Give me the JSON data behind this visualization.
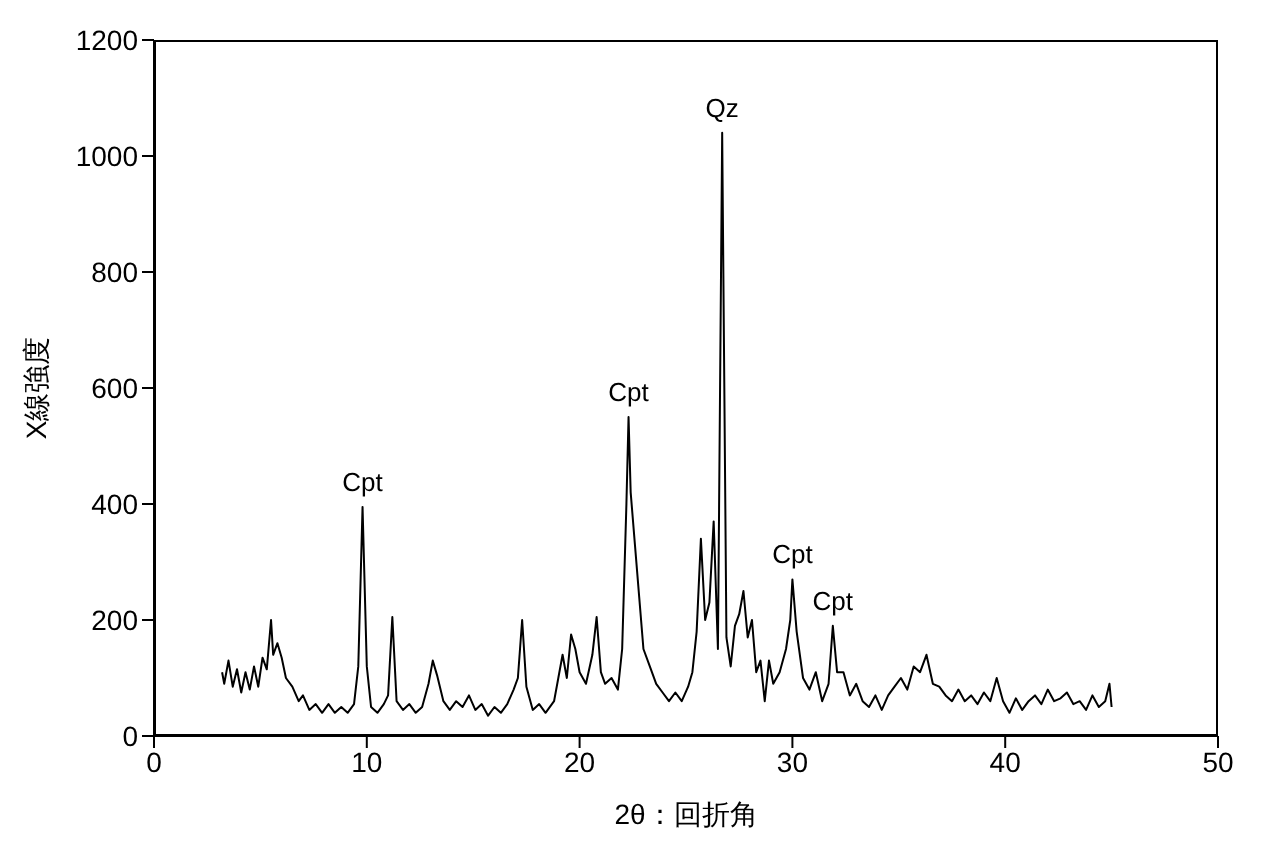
{
  "chart_data": {
    "type": "line",
    "xlabel": "2θ：回折角",
    "ylabel": "X線強度",
    "xlim": [
      0,
      50
    ],
    "xticks": [
      0,
      10,
      20,
      30,
      40,
      50
    ],
    "ylim": [
      0,
      1200
    ],
    "yticks": [
      0,
      200,
      400,
      600,
      800,
      1000,
      1200
    ],
    "grid": false,
    "marker": "none",
    "line_style": "solid",
    "x": [
      3.2,
      3.3,
      3.5,
      3.7,
      3.9,
      4.1,
      4.3,
      4.5,
      4.7,
      4.9,
      5.1,
      5.3,
      5.5,
      5.6,
      5.8,
      6.0,
      6.2,
      6.5,
      6.8,
      7.0,
      7.3,
      7.6,
      7.9,
      8.2,
      8.5,
      8.8,
      9.1,
      9.4,
      9.6,
      9.8,
      10.0,
      10.2,
      10.5,
      10.8,
      11.0,
      11.2,
      11.4,
      11.7,
      12.0,
      12.3,
      12.6,
      12.9,
      13.1,
      13.3,
      13.6,
      13.9,
      14.2,
      14.5,
      14.8,
      15.1,
      15.4,
      15.7,
      16.0,
      16.3,
      16.6,
      16.9,
      17.1,
      17.3,
      17.5,
      17.8,
      18.1,
      18.4,
      18.8,
      19.0,
      19.2,
      19.4,
      19.6,
      19.8,
      20.0,
      20.3,
      20.6,
      20.8,
      21.0,
      21.2,
      21.5,
      21.8,
      22.0,
      22.2,
      22.3,
      22.4,
      22.6,
      22.8,
      23.0,
      23.3,
      23.6,
      23.9,
      24.2,
      24.5,
      24.8,
      25.1,
      25.3,
      25.5,
      25.7,
      25.9,
      26.1,
      26.3,
      26.5,
      26.7,
      26.9,
      27.1,
      27.3,
      27.5,
      27.7,
      27.9,
      28.1,
      28.3,
      28.5,
      28.7,
      28.9,
      29.1,
      29.4,
      29.7,
      29.9,
      30.0,
      30.2,
      30.5,
      30.8,
      31.1,
      31.4,
      31.7,
      31.9,
      32.1,
      32.4,
      32.7,
      33.0,
      33.3,
      33.6,
      33.9,
      34.2,
      34.5,
      34.8,
      35.1,
      35.4,
      35.7,
      36.0,
      36.3,
      36.6,
      36.9,
      37.2,
      37.5,
      37.8,
      38.1,
      38.4,
      38.7,
      39.0,
      39.3,
      39.6,
      39.9,
      40.2,
      40.5,
      40.8,
      41.1,
      41.4,
      41.7,
      42.0,
      42.3,
      42.6,
      42.9,
      43.2,
      43.5,
      43.8,
      44.1,
      44.4,
      44.7,
      44.9,
      45.0
    ],
    "series": [
      {
        "color": "#000000",
        "values": [
          110,
          90,
          130,
          85,
          115,
          75,
          110,
          80,
          120,
          85,
          135,
          115,
          200,
          140,
          160,
          135,
          100,
          85,
          60,
          70,
          45,
          55,
          40,
          55,
          40,
          50,
          40,
          55,
          120,
          395,
          120,
          50,
          40,
          55,
          70,
          205,
          60,
          45,
          55,
          40,
          50,
          90,
          130,
          105,
          60,
          45,
          60,
          50,
          70,
          45,
          55,
          35,
          50,
          40,
          55,
          80,
          100,
          200,
          85,
          45,
          55,
          40,
          60,
          100,
          140,
          100,
          175,
          150,
          110,
          90,
          140,
          205,
          110,
          90,
          100,
          80,
          150,
          400,
          550,
          420,
          330,
          240,
          150,
          120,
          90,
          75,
          60,
          75,
          60,
          85,
          110,
          180,
          340,
          200,
          230,
          370,
          150,
          1040,
          170,
          120,
          190,
          210,
          250,
          170,
          200,
          110,
          130,
          60,
          130,
          90,
          110,
          150,
          200,
          270,
          180,
          100,
          80,
          110,
          60,
          90,
          190,
          110,
          110,
          70,
          90,
          60,
          50,
          70,
          45,
          70,
          85,
          100,
          80,
          120,
          110,
          140,
          90,
          85,
          70,
          60,
          80,
          60,
          70,
          55,
          75,
          60,
          100,
          60,
          40,
          65,
          45,
          60,
          70,
          55,
          80,
          60,
          65,
          75,
          55,
          60,
          45,
          70,
          50,
          60,
          90,
          50
        ]
      }
    ],
    "annotations": [
      {
        "text": "Cpt",
        "x": 9.8,
        "y": 395
      },
      {
        "text": "Cpt",
        "x": 22.3,
        "y": 550
      },
      {
        "text": "Qz",
        "x": 26.7,
        "y": 1040
      },
      {
        "text": "Cpt",
        "x": 30.0,
        "y": 270
      },
      {
        "text": "Cpt",
        "x": 31.9,
        "y": 190
      }
    ]
  }
}
